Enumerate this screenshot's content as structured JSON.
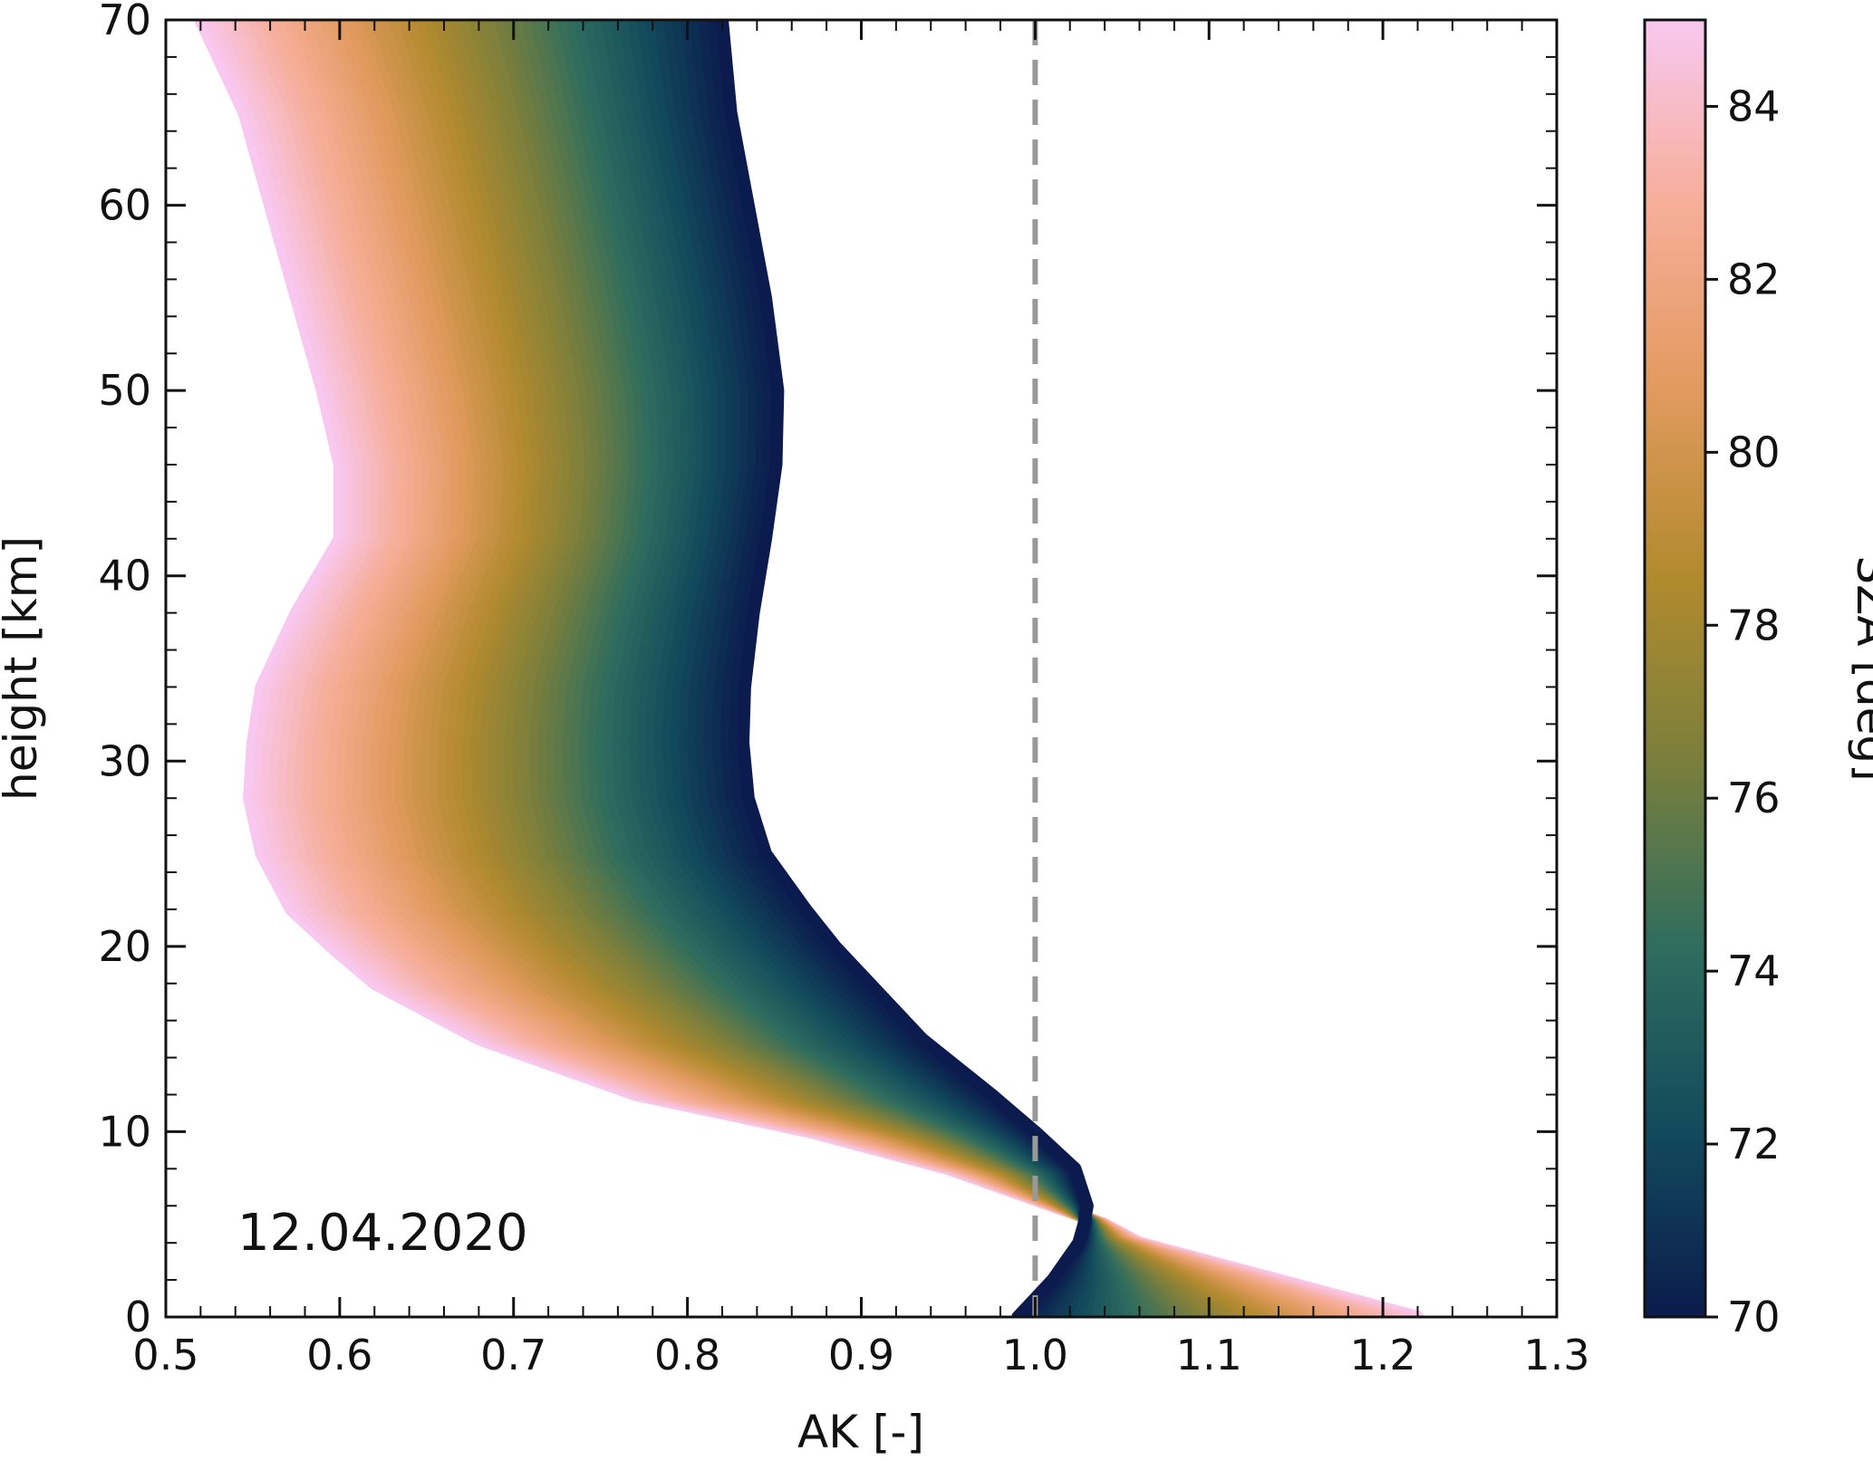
{
  "chart_data": {
    "type": "line",
    "title": "",
    "xlabel": "AK [-]",
    "ylabel": "height [km]",
    "xlim": [
      0.5,
      1.3
    ],
    "ylim": [
      0,
      70
    ],
    "xticks": [
      "0.5",
      "0.6",
      "0.7",
      "0.8",
      "0.9",
      "1.0",
      "1.1",
      "1.2",
      "1.3"
    ],
    "yticks": [
      "0",
      "10",
      "20",
      "30",
      "40",
      "50",
      "60",
      "70"
    ],
    "annotation": "12.04.2020",
    "reference_line": {
      "x": 1.0,
      "style": "dashed",
      "color": "#999999"
    },
    "colorbar": {
      "label": "SZA [deg]",
      "range": [
        70,
        85
      ],
      "ticks": [
        "70",
        "72",
        "74",
        "76",
        "78",
        "80",
        "82",
        "84"
      ],
      "colors": [
        "#0b1b4d",
        "#124a5c",
        "#2f6d5e",
        "#7a7f3c",
        "#b28a2e",
        "#e19a5e",
        "#f7ae99",
        "#f8c8f0"
      ]
    },
    "sza_start": 70,
    "sza_end": 85,
    "curve_count": 60,
    "heights": [
      0,
      2,
      4,
      5,
      6,
      8,
      10,
      12,
      15,
      18,
      20,
      22,
      25,
      28,
      31,
      34,
      38,
      42,
      46,
      50,
      55,
      60,
      65,
      70
    ],
    "profile_low_sza": {
      "sza": 70,
      "ak": [
        0.99,
        1.01,
        1.025,
        1.028,
        1.03,
        1.023,
        1.0,
        0.975,
        0.935,
        0.905,
        0.885,
        0.868,
        0.845,
        0.835,
        0.832,
        0.833,
        0.838,
        0.845,
        0.851,
        0.852,
        0.845,
        0.835,
        0.825,
        0.82
      ]
    },
    "profile_high_sza": {
      "sza": 85,
      "ak": [
        1.22,
        1.14,
        1.06,
        1.04,
        1.01,
        0.95,
        0.87,
        0.77,
        0.68,
        0.62,
        0.595,
        0.572,
        0.555,
        0.548,
        0.55,
        0.555,
        0.575,
        0.6,
        0.6,
        0.59,
        0.575,
        0.56,
        0.545,
        0.52
      ]
    }
  }
}
